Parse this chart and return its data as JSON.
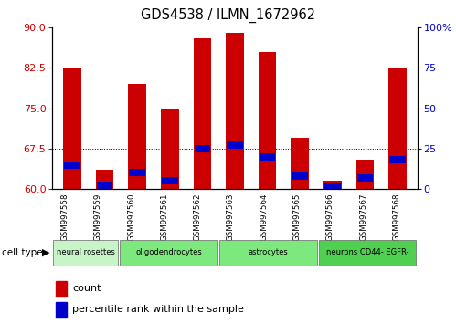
{
  "title": "GDS4538 / ILMN_1672962",
  "samples": [
    "GSM997558",
    "GSM997559",
    "GSM997560",
    "GSM997561",
    "GSM997562",
    "GSM997563",
    "GSM997564",
    "GSM997565",
    "GSM997566",
    "GSM997567",
    "GSM997568"
  ],
  "count_values": [
    82.5,
    63.5,
    79.5,
    75.0,
    88.0,
    89.0,
    85.5,
    69.5,
    61.5,
    65.5,
    82.5
  ],
  "percentile_values": [
    15,
    2,
    10,
    5,
    25,
    27,
    20,
    8,
    1,
    7,
    18
  ],
  "ymin": 60,
  "ymax": 90,
  "yticks_left": [
    60,
    67.5,
    75,
    82.5,
    90
  ],
  "yticks_right": [
    0,
    25,
    50,
    75,
    100
  ],
  "cell_type_groups": [
    {
      "label": "neural rosettes",
      "indices": [
        0,
        1
      ],
      "color": "#c8f5c8"
    },
    {
      "label": "oligodendrocytes",
      "indices": [
        2,
        3,
        4
      ],
      "color": "#7de87d"
    },
    {
      "label": "astrocytes",
      "indices": [
        5,
        6,
        7
      ],
      "color": "#7de87d"
    },
    {
      "label": "neurons CD44- EGFR-",
      "indices": [
        8,
        9,
        10
      ],
      "color": "#50d050"
    }
  ],
  "bar_color": "#cc0000",
  "percentile_color": "#0000cc",
  "bg_color": "#ffffff",
  "tick_label_color_left": "#cc0000",
  "tick_label_color_right": "#0000cc",
  "bar_width": 0.55
}
